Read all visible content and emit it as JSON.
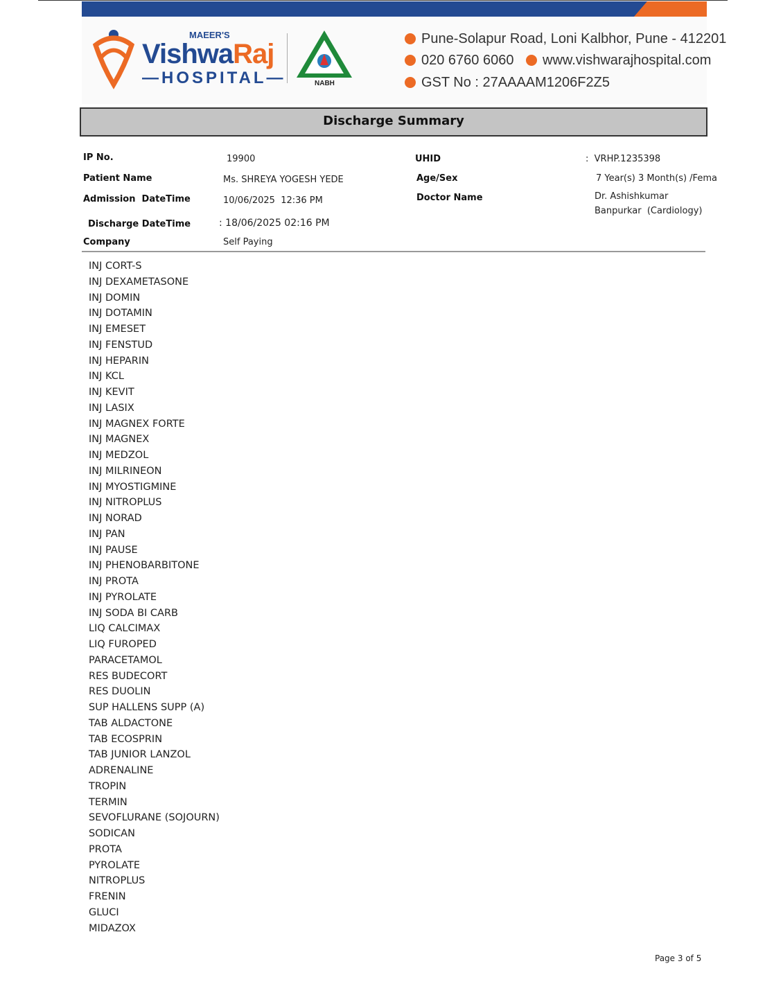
{
  "header": {
    "brand_prefix": "MAEER'S",
    "brand_name_a": "Vishwa",
    "brand_name_b": "Raj",
    "brand_sub": "—HOSPITAL—",
    "accreditation": "NABH",
    "address": "Pune-Solapur Road, Loni Kalbhor, Pune - 412201",
    "phone": "020 6760 6060",
    "website": "www.vishwarajhospital.com",
    "gst": "GST No : 27AAAAM1206F2Z5",
    "colors": {
      "blue": "#234a92",
      "orange": "#ec6a24"
    }
  },
  "title": "Discharge Summary",
  "patient": {
    "ip_label": "IP No.",
    "ip": "19900",
    "name_label": "Patient Name",
    "name": "Ms. SHREYA YOGESH YEDE",
    "admission_label": "Admission  DateTime",
    "admission": "10/06/2025  12:36 PM",
    "discharge_label": "Discharge DateTime",
    "discharge": ": 18/06/2025 02:16 PM",
    "company_label": "Company",
    "company": "Self Paying",
    "uhid_label": "UHID",
    "uhid": ":  VRHP.1235398",
    "agesex_label": "Age/Sex",
    "agesex": "7 Year(s) 3 Month(s) /Fema",
    "doctor_label": "Doctor Name",
    "doctor_line1": "Dr. Ashishkumar",
    "doctor_line2": "Banpurkar  (Cardiology)"
  },
  "medications": [
    "INJ CORT-S",
    "INJ DEXAMETASONE",
    "INJ DOMIN",
    "INJ DOTAMIN",
    "INJ EMESET",
    "INJ FENSTUD",
    "INJ HEPARIN",
    "INJ KCL",
    "INJ KEVIT",
    "INJ LASIX",
    "INJ MAGNEX FORTE",
    "INJ MAGNEX",
    "INJ MEDZOL",
    "INJ MILRINEON",
    "INJ MYOSTIGMINE",
    "INJ NITROPLUS",
    "INJ NORAD",
    "INJ PAN",
    "INJ PAUSE",
    "INJ PHENOBARBITONE",
    "INJ PROTA",
    "INJ PYROLATE",
    "INJ SODA BI CARB",
    "LIQ CALCIMAX",
    "LIQ FUROPED",
    "PARACETAMOL",
    "RES BUDECORT",
    "RES DUOLIN",
    "SUP HALLENS SUPP (A)",
    "TAB ALDACTONE",
    "TAB ECOSPRIN",
    "TAB JUNIOR LANZOL",
    "ADRENALINE",
    "TROPIN",
    "TERMIN",
    "SEVOFLURANE (SOJOURN)",
    "SODICAN",
    "PROTA",
    "PYROLATE",
    "NITROPLUS",
    "FRENIN",
    "GLUCI",
    "MIDAZOX"
  ],
  "footer": {
    "page": "Page 3 of 5"
  }
}
